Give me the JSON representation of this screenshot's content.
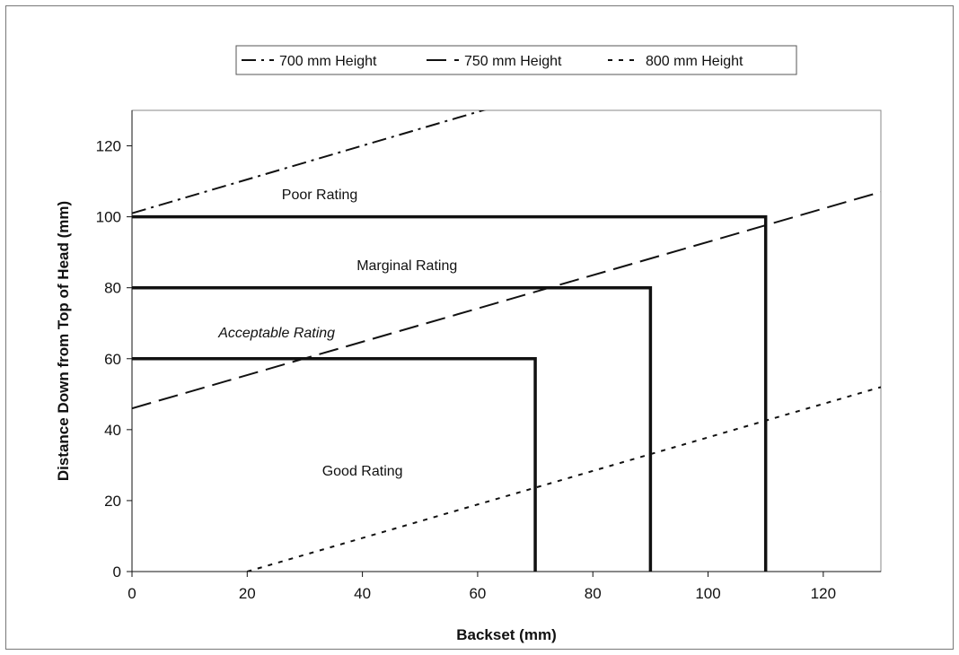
{
  "chart_data": {
    "type": "line",
    "xlabel": "Backset (mm)",
    "ylabel": "Distance Down from Top of Head (mm)",
    "xlim": [
      0,
      130
    ],
    "ylim": [
      0,
      130
    ],
    "x_ticks": [
      0,
      20,
      40,
      60,
      80,
      100,
      120
    ],
    "y_ticks": [
      0,
      20,
      40,
      60,
      80,
      100,
      120
    ],
    "grid": false,
    "legend_position": "top",
    "series": [
      {
        "name": "700 mm Height",
        "style": "dash-dot",
        "color": "#111111",
        "points": [
          [
            0,
            101
          ],
          [
            63,
            131
          ]
        ]
      },
      {
        "name": "750 mm Height",
        "style": "long-dash",
        "color": "#111111",
        "points": [
          [
            0,
            46
          ],
          [
            130,
            107
          ]
        ]
      },
      {
        "name": "800 mm Height",
        "style": "dotted",
        "color": "#111111",
        "points": [
          [
            20,
            0
          ],
          [
            130,
            52
          ]
        ]
      }
    ],
    "rating_boundaries": [
      {
        "points": [
          [
            0,
            60
          ],
          [
            70,
            60
          ],
          [
            70,
            0
          ]
        ]
      },
      {
        "points": [
          [
            0,
            80
          ],
          [
            90,
            80
          ],
          [
            90,
            0
          ]
        ]
      },
      {
        "points": [
          [
            0,
            100
          ],
          [
            110,
            100
          ],
          [
            110,
            0
          ]
        ]
      }
    ],
    "annotations": [
      {
        "text": "Poor Rating",
        "x": 26,
        "y": 105,
        "italic": false
      },
      {
        "text": "Marginal Rating",
        "x": 39,
        "y": 85,
        "italic": false
      },
      {
        "text": "Acceptable Rating",
        "x": 15,
        "y": 66,
        "italic": true
      },
      {
        "text": "Good Rating",
        "x": 33,
        "y": 27,
        "italic": false
      }
    ]
  }
}
